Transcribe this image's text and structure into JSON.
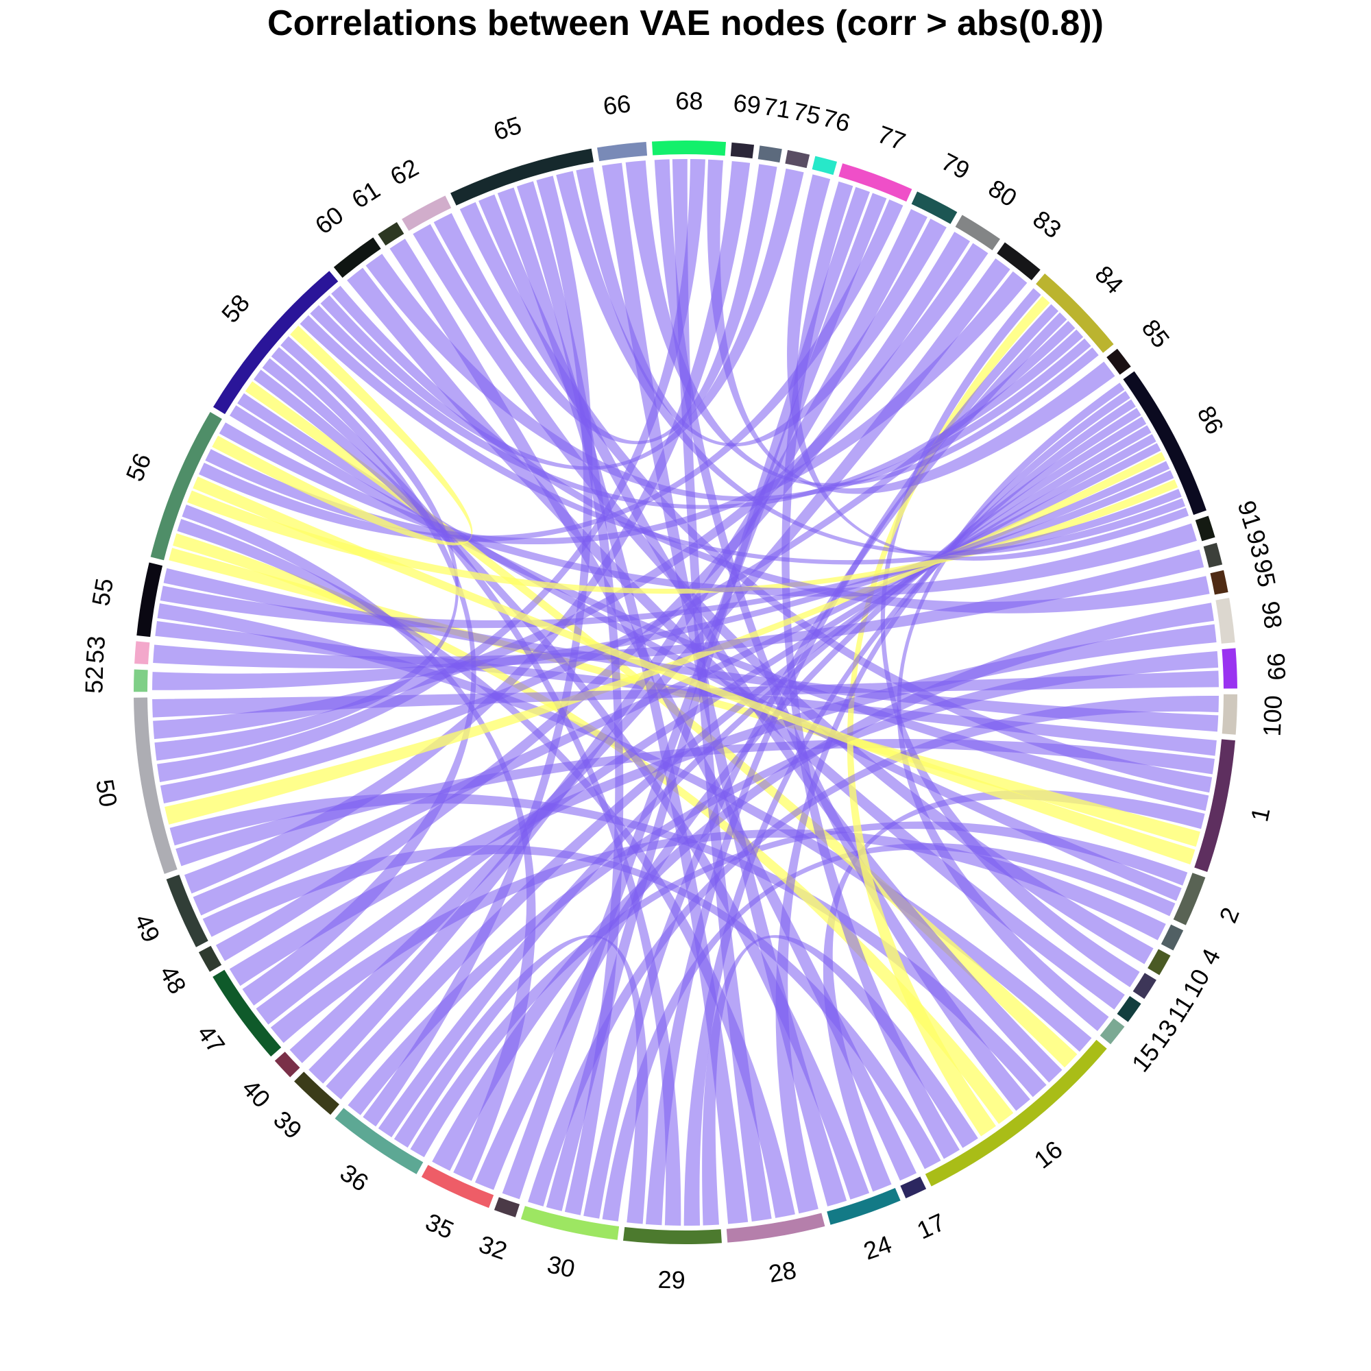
{
  "title": "Correlations between VAE nodes (corr > abs(0.8))",
  "chart_data": {
    "type": "chord",
    "title": "Correlations between VAE nodes (corr > abs(0.8))",
    "direction": "clockwise starting at east (3 o'clock), node 1 just below east",
    "link_colors": {
      "positive": "#7b5cf0",
      "negative": "#ffff66"
    },
    "nodes": [
      {
        "id": "1",
        "weight": 6,
        "color": "#5e2f5f"
      },
      {
        "id": "2",
        "weight": 2.3,
        "color": "#596354"
      },
      {
        "id": "4",
        "weight": 1,
        "color": "#516064"
      },
      {
        "id": "10",
        "weight": 1,
        "color": "#4a5a24"
      },
      {
        "id": "11",
        "weight": 1,
        "color": "#3d3658"
      },
      {
        "id": "13",
        "weight": 1,
        "color": "#123e3e"
      },
      {
        "id": "15",
        "weight": 1,
        "color": "#7ba993"
      },
      {
        "id": "16",
        "weight": 10,
        "color": "#a9bd17"
      },
      {
        "id": "17",
        "weight": 1,
        "color": "#2c2760"
      },
      {
        "id": "24",
        "weight": 3.3,
        "color": "#137a86"
      },
      {
        "id": "28",
        "weight": 4.4,
        "color": "#b57fab"
      },
      {
        "id": "29",
        "weight": 4.4,
        "color": "#4c7a2e"
      },
      {
        "id": "30",
        "weight": 4.4,
        "color": "#9de662"
      },
      {
        "id": "32",
        "weight": 1,
        "color": "#4b3a47"
      },
      {
        "id": "35",
        "weight": 3.3,
        "color": "#ee5d67"
      },
      {
        "id": "36",
        "weight": 4.4,
        "color": "#5da894"
      },
      {
        "id": "39",
        "weight": 2.2,
        "color": "#3b3c19"
      },
      {
        "id": "40",
        "weight": 1,
        "color": "#7a3048"
      },
      {
        "id": "47",
        "weight": 4.4,
        "color": "#0f5a2a"
      },
      {
        "id": "48",
        "weight": 1,
        "color": "#2f3b2f"
      },
      {
        "id": "49",
        "weight": 3.3,
        "color": "#313e37"
      },
      {
        "id": "50",
        "weight": 8,
        "color": "#adadb3"
      },
      {
        "id": "52",
        "weight": 1,
        "color": "#7fcf87"
      },
      {
        "id": "53",
        "weight": 1,
        "color": "#f3a8cb"
      },
      {
        "id": "55",
        "weight": 3.3,
        "color": "#0a0812"
      },
      {
        "id": "56",
        "weight": 7,
        "color": "#4f8e68"
      },
      {
        "id": "58",
        "weight": 8,
        "color": "#2a1599"
      },
      {
        "id": "60",
        "weight": 2.2,
        "color": "#0f1512"
      },
      {
        "id": "61",
        "weight": 1,
        "color": "#2d3822"
      },
      {
        "id": "62",
        "weight": 2.2,
        "color": "#d1adcb"
      },
      {
        "id": "65",
        "weight": 6.6,
        "color": "#16292d"
      },
      {
        "id": "66",
        "weight": 2.2,
        "color": "#798ab7"
      },
      {
        "id": "68",
        "weight": 3.3,
        "color": "#13f06b"
      },
      {
        "id": "69",
        "weight": 1,
        "color": "#2b2638"
      },
      {
        "id": "71",
        "weight": 1,
        "color": "#5c6a7d"
      },
      {
        "id": "75",
        "weight": 1,
        "color": "#5a4d63"
      },
      {
        "id": "76",
        "weight": 1,
        "color": "#27e8c9"
      },
      {
        "id": "77",
        "weight": 3.3,
        "color": "#ef4fc8"
      },
      {
        "id": "79",
        "weight": 2,
        "color": "#1c5653"
      },
      {
        "id": "80",
        "weight": 2,
        "color": "#838586"
      },
      {
        "id": "83",
        "weight": 2,
        "color": "#161618"
      },
      {
        "id": "84",
        "weight": 4.4,
        "color": "#bbb42f"
      },
      {
        "id": "85",
        "weight": 1,
        "color": "#1a1012"
      },
      {
        "id": "86",
        "weight": 7,
        "color": "#0b0a20"
      },
      {
        "id": "91",
        "weight": 1,
        "color": "#141a12"
      },
      {
        "id": "93",
        "weight": 1,
        "color": "#3c403a"
      },
      {
        "id": "95",
        "weight": 1,
        "color": "#4f2b14"
      },
      {
        "id": "98",
        "weight": 2,
        "color": "#dcd7cf"
      },
      {
        "id": "99",
        "weight": 1.8,
        "color": "#9a33f0"
      },
      {
        "id": "100",
        "weight": 1.8,
        "color": "#cfc8bd"
      }
    ],
    "links": [
      [
        "1",
        "55",
        "pos"
      ],
      [
        "1",
        "50",
        "pos"
      ],
      [
        "1",
        "65",
        "pos"
      ],
      [
        "1",
        "58",
        "pos"
      ],
      [
        "1",
        "24",
        "pos"
      ],
      [
        "1",
        "56",
        "neg"
      ],
      [
        "2",
        "36",
        "pos"
      ],
      [
        "2",
        "58",
        "pos"
      ],
      [
        "2",
        "30",
        "pos"
      ],
      [
        "4",
        "47",
        "pos"
      ],
      [
        "10",
        "62",
        "pos"
      ],
      [
        "11",
        "84",
        "pos"
      ],
      [
        "13",
        "60",
        "pos"
      ],
      [
        "15",
        "86",
        "pos"
      ],
      [
        "16",
        "55",
        "pos"
      ],
      [
        "16",
        "58",
        "neg"
      ],
      [
        "16",
        "65",
        "pos"
      ],
      [
        "16",
        "50",
        "pos"
      ],
      [
        "16",
        "68",
        "pos"
      ],
      [
        "16",
        "56",
        "neg"
      ],
      [
        "16",
        "84",
        "neg"
      ],
      [
        "16",
        "29",
        "pos"
      ],
      [
        "16",
        "77",
        "pos"
      ],
      [
        "16",
        "49",
        "pos"
      ],
      [
        "17",
        "61",
        "pos"
      ],
      [
        "24",
        "58",
        "pos"
      ],
      [
        "24",
        "66",
        "pos"
      ],
      [
        "28",
        "86",
        "pos"
      ],
      [
        "28",
        "56",
        "pos"
      ],
      [
        "28",
        "68",
        "pos"
      ],
      [
        "28",
        "65",
        "pos"
      ],
      [
        "29",
        "86",
        "pos"
      ],
      [
        "29",
        "58",
        "pos"
      ],
      [
        "29",
        "84",
        "pos"
      ],
      [
        "29",
        "36",
        "pos"
      ],
      [
        "30",
        "84",
        "pos"
      ],
      [
        "30",
        "65",
        "pos"
      ],
      [
        "30",
        "77",
        "pos"
      ],
      [
        "30",
        "100",
        "pos"
      ],
      [
        "32",
        "77",
        "pos"
      ],
      [
        "35",
        "86",
        "pos"
      ],
      [
        "35",
        "56",
        "pos"
      ],
      [
        "35",
        "98",
        "pos"
      ],
      [
        "36",
        "86",
        "pos"
      ],
      [
        "36",
        "65",
        "pos"
      ],
      [
        "36",
        "99",
        "pos"
      ],
      [
        "39",
        "86",
        "pos"
      ],
      [
        "39",
        "79",
        "pos"
      ],
      [
        "40",
        "83",
        "pos"
      ],
      [
        "47",
        "86",
        "pos"
      ],
      [
        "47",
        "58",
        "pos"
      ],
      [
        "47",
        "98",
        "pos"
      ],
      [
        "48",
        "80",
        "pos"
      ],
      [
        "49",
        "86",
        "pos"
      ],
      [
        "49",
        "69",
        "pos"
      ],
      [
        "50",
        "86",
        "neg"
      ],
      [
        "50",
        "84",
        "pos"
      ],
      [
        "50",
        "68",
        "pos"
      ],
      [
        "50",
        "58",
        "pos"
      ],
      [
        "50",
        "80",
        "pos"
      ],
      [
        "50",
        "99",
        "pos"
      ],
      [
        "52",
        "86",
        "pos"
      ],
      [
        "53",
        "93",
        "pos"
      ],
      [
        "55",
        "86",
        "pos"
      ],
      [
        "55",
        "100",
        "pos"
      ],
      [
        "56",
        "86",
        "neg"
      ],
      [
        "56",
        "1",
        "neg"
      ],
      [
        "56",
        "77",
        "pos"
      ],
      [
        "56",
        "83",
        "pos"
      ],
      [
        "56",
        "58",
        "neg"
      ],
      [
        "56",
        "91",
        "pos"
      ],
      [
        "58",
        "86",
        "pos"
      ],
      [
        "58",
        "84",
        "pos"
      ],
      [
        "58",
        "75",
        "pos"
      ],
      [
        "58",
        "95",
        "pos"
      ],
      [
        "60",
        "84",
        "pos"
      ],
      [
        "62",
        "71",
        "pos"
      ],
      [
        "65",
        "86",
        "pos"
      ],
      [
        "65",
        "79",
        "pos"
      ],
      [
        "66",
        "84",
        "pos"
      ],
      [
        "68",
        "85",
        "pos"
      ],
      [
        "76",
        "86",
        "pos"
      ]
    ]
  }
}
